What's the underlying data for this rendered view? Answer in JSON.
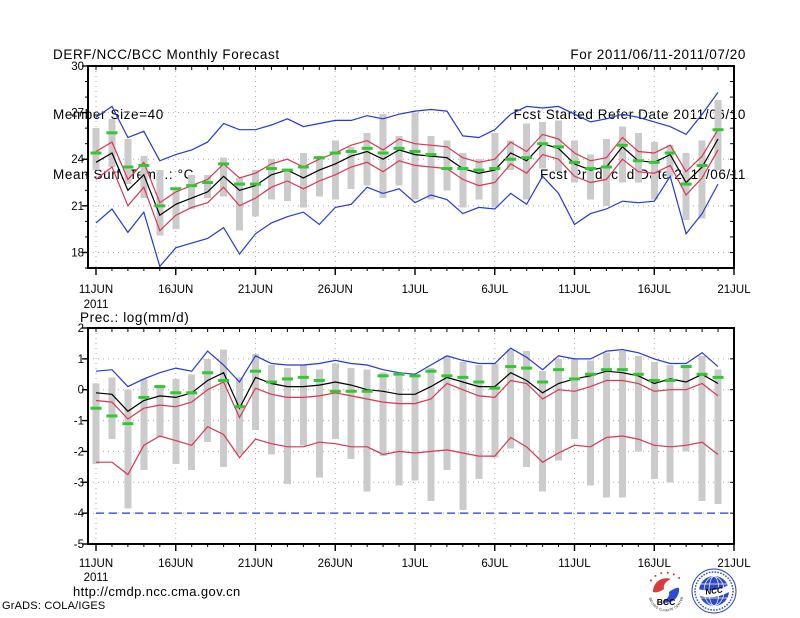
{
  "header": {
    "title": "DERF/NCC/BCC Monthly Forecast",
    "member_size": "Member Size=40",
    "for_range": "For 2011/06/11-2011/07/20",
    "fcst_started": "Fcst Started Refer Date 2011/06/10",
    "fcst_produced": "Fcst Produced Date 2011/06/11"
  },
  "footer": {
    "url": "http://cmdp.ncc.cma.gov.cn",
    "credit": "GrADS: COLA/IGES",
    "bcc_logo_text": "BCC",
    "bcc_logo_subtext": "BEIJING CLIMATE CENTER",
    "ncc_logo_text": "NCC"
  },
  "colors": {
    "mean": "#000000",
    "envelope": "#2438e0",
    "spread": "#e03350",
    "observation": "#2fc92f",
    "bars": "#cbcbcb",
    "grid": "#a9a9a9"
  },
  "chart_data": [
    {
      "type": "line",
      "title": "Mean Surf. Temp.: °C",
      "n_days": 40,
      "year_label": "2011",
      "x_tick_labels": [
        "11JUN",
        "16JUN",
        "21JUN",
        "26JUN",
        "1JUL",
        "6JUL",
        "11JUL",
        "16JUL",
        "21JUL"
      ],
      "x_tick_days": [
        1,
        6,
        11,
        16,
        21,
        26,
        31,
        36,
        41
      ],
      "ylim": [
        17,
        30
      ],
      "yticks": [
        18,
        21,
        24,
        27,
        30
      ],
      "grid": true,
      "series": [
        {
          "name": "ensemble-max",
          "color_key": "envelope",
          "values": [
            26.7,
            27.4,
            25.4,
            25.8,
            23.9,
            24.3,
            24.6,
            25.1,
            26.3,
            25.9,
            25.9,
            26.2,
            26.6,
            26.1,
            26.3,
            26.5,
            26.5,
            26.8,
            26.6,
            26.9,
            27.1,
            27.2,
            27.1,
            25.5,
            25.4,
            25.9,
            26.9,
            27.4,
            27.3,
            27.4,
            26.9,
            26.4,
            26.6,
            26.9,
            26.7,
            26.4,
            26.1,
            25.6,
            26.9,
            28.3
          ]
        },
        {
          "name": "spread-upper",
          "color_key": "spread",
          "values": [
            24.5,
            25.1,
            22.7,
            23.8,
            21.2,
            21.9,
            22.3,
            22.7,
            23.7,
            22.8,
            23.1,
            23.7,
            24.0,
            23.5,
            24.0,
            24.4,
            24.9,
            25.2,
            24.6,
            25.3,
            25.0,
            24.9,
            24.8,
            24.1,
            23.8,
            24.0,
            25.1,
            24.5,
            25.6,
            25.3,
            24.4,
            23.9,
            24.1,
            25.4,
            24.5,
            24.4,
            24.9,
            23.2,
            24.2,
            25.9
          ]
        },
        {
          "name": "spread-lower",
          "color_key": "spread",
          "values": [
            22.7,
            23.5,
            21.0,
            22.2,
            19.4,
            20.4,
            20.9,
            21.2,
            22.2,
            21.0,
            21.5,
            22.2,
            22.6,
            22.1,
            22.6,
            23.0,
            23.5,
            23.8,
            23.2,
            23.9,
            23.6,
            23.5,
            23.4,
            22.7,
            22.3,
            22.5,
            23.7,
            23.1,
            24.3,
            24.0,
            22.9,
            22.5,
            22.7,
            24.0,
            23.2,
            23.1,
            23.6,
            21.7,
            22.8,
            24.6
          ]
        },
        {
          "name": "ensemble-min",
          "color_key": "envelope",
          "values": [
            19.9,
            20.8,
            19.3,
            20.6,
            17.1,
            18.3,
            18.6,
            18.9,
            19.6,
            17.9,
            19.2,
            19.9,
            20.3,
            20.6,
            19.8,
            20.9,
            21.1,
            22.2,
            21.8,
            22.1,
            21.2,
            21.7,
            21.4,
            20.5,
            20.9,
            20.8,
            21.8,
            21.1,
            22.9,
            21.8,
            19.8,
            20.5,
            20.8,
            21.3,
            21.2,
            21.3,
            22.9,
            19.2,
            20.5,
            22.4
          ]
        },
        {
          "name": "ensemble-mean",
          "color_key": "mean",
          "values": [
            23.8,
            24.4,
            22.0,
            23.0,
            20.4,
            21.1,
            21.5,
            21.9,
            22.9,
            22.0,
            22.3,
            23.0,
            23.3,
            22.8,
            23.3,
            23.7,
            24.2,
            24.5,
            24.0,
            24.6,
            24.3,
            24.2,
            24.1,
            23.4,
            23.1,
            23.3,
            24.4,
            23.9,
            25.0,
            24.7,
            23.7,
            23.3,
            23.5,
            24.8,
            23.9,
            23.8,
            24.3,
            22.5,
            23.5,
            25.3
          ]
        }
      ],
      "markers": {
        "name": "observation",
        "color_key": "observation",
        "values": [
          24.4,
          25.7,
          23.5,
          23.6,
          21.0,
          22.1,
          22.3,
          22.5,
          23.7,
          22.4,
          22.4,
          23.4,
          23.3,
          23.5,
          24.1,
          24.4,
          24.5,
          24.7,
          24.4,
          24.7,
          24.5,
          24.3,
          23.4,
          23.4,
          23.3,
          23.4,
          24.0,
          24.1,
          25.0,
          24.8,
          23.8,
          23.4,
          23.5,
          24.9,
          23.9,
          23.8,
          24.4,
          22.4,
          23.6,
          25.9
        ]
      },
      "bars": {
        "bottom": [
          23.3,
          23.5,
          22.4,
          21.5,
          19.1,
          19.5,
          20.8,
          21.5,
          21.6,
          19.4,
          20.3,
          21.4,
          21.3,
          20.9,
          21.6,
          21.4,
          22.1,
          22.3,
          21.5,
          22.3,
          21.4,
          21.4,
          22.0,
          20.9,
          21.4,
          20.9,
          23.3,
          21.4,
          23.4,
          23.2,
          22.5,
          21.4,
          21.0,
          22.5,
          22.5,
          21.4,
          22.9,
          20.1,
          20.2,
          23.3
        ],
        "top": [
          26.0,
          26.6,
          25.3,
          24.2,
          23.3,
          22.0,
          23.0,
          23.0,
          24.1,
          22.8,
          23.3,
          24.0,
          23.4,
          24.4,
          24.2,
          25.2,
          24.8,
          25.7,
          26.9,
          25.5,
          27.0,
          25.5,
          25.2,
          24.4,
          24.0,
          25.7,
          25.2,
          26.3,
          26.4,
          26.5,
          25.2,
          24.3,
          25.3,
          26.1,
          25.7,
          25.1,
          24.9,
          24.4,
          25.2,
          27.8
        ]
      }
    },
    {
      "type": "line",
      "title": "Prec.: log(mm/d)",
      "n_days": 40,
      "year_label": "2011",
      "x_tick_labels": [
        "11JUN",
        "16JUN",
        "21JUN",
        "26JUN",
        "1JUL",
        "6JUL",
        "11JUL",
        "16JUL",
        "21JUL"
      ],
      "x_tick_days": [
        1,
        6,
        11,
        16,
        21,
        26,
        31,
        36,
        41
      ],
      "ylim": [
        -5,
        2
      ],
      "yticks": [
        -5,
        -4,
        -3,
        -2,
        -1,
        0,
        1,
        2
      ],
      "grid": true,
      "ref_line": {
        "value": -4,
        "color_key": "envelope",
        "style": "dashed"
      },
      "series": [
        {
          "name": "ensemble-max",
          "color_key": "envelope",
          "values": [
            0.6,
            0.65,
            0.1,
            0.35,
            0.55,
            0.7,
            0.6,
            1.25,
            0.8,
            0.25,
            1.1,
            0.85,
            0.8,
            0.8,
            0.85,
            0.95,
            0.85,
            0.8,
            0.65,
            0.55,
            0.5,
            0.8,
            1.1,
            0.95,
            0.85,
            0.85,
            1.35,
            1.05,
            0.65,
            1.1,
            1.0,
            1.0,
            1.25,
            1.3,
            1.2,
            1.0,
            0.85,
            0.85,
            1.2,
            0.75
          ]
        },
        {
          "name": "spread-upper",
          "color_key": "spread",
          "values": [
            -0.35,
            -0.4,
            -0.95,
            -0.6,
            -0.5,
            -0.55,
            -0.4,
            0.0,
            0.25,
            -0.9,
            0.05,
            -0.15,
            -0.25,
            -0.25,
            -0.2,
            -0.1,
            -0.2,
            -0.3,
            -0.4,
            -0.45,
            -0.45,
            -0.3,
            0.2,
            0.0,
            -0.2,
            -0.25,
            0.3,
            0.2,
            -0.3,
            0.0,
            -0.05,
            0.1,
            0.3,
            0.3,
            0.2,
            -0.05,
            0.0,
            0.0,
            0.2,
            -0.2
          ]
        },
        {
          "name": "spread-lower",
          "color_key": "spread",
          "values": [
            -2.35,
            -2.35,
            -2.75,
            -1.8,
            -1.5,
            -1.65,
            -1.8,
            -1.2,
            -1.45,
            -2.2,
            -1.6,
            -1.75,
            -1.85,
            -1.85,
            -1.7,
            -1.75,
            -1.85,
            -1.85,
            -2.1,
            -2.0,
            -2.05,
            -2.0,
            -1.95,
            -2.05,
            -2.15,
            -2.15,
            -1.55,
            -1.85,
            -2.35,
            -2.05,
            -1.8,
            -1.85,
            -1.55,
            -1.5,
            -1.6,
            -1.8,
            -1.85,
            -1.8,
            -1.7,
            -2.1
          ]
        },
        {
          "name": "ensemble-mean",
          "color_key": "mean",
          "values": [
            -0.1,
            -0.15,
            -0.7,
            -0.35,
            -0.2,
            -0.25,
            -0.1,
            0.3,
            0.55,
            -0.6,
            0.4,
            0.2,
            0.1,
            0.1,
            0.15,
            0.25,
            0.15,
            0.0,
            -0.05,
            -0.15,
            -0.15,
            0.1,
            0.4,
            0.25,
            0.1,
            0.1,
            0.55,
            0.3,
            -0.1,
            0.2,
            0.35,
            0.45,
            0.6,
            0.55,
            0.45,
            0.2,
            0.35,
            0.25,
            0.5,
            0.2
          ]
        }
      ],
      "markers": {
        "name": "observation",
        "color_key": "observation",
        "values": [
          -0.6,
          -0.85,
          -1.1,
          -0.25,
          0.1,
          -0.1,
          -0.1,
          0.55,
          0.3,
          -0.55,
          0.6,
          0.25,
          0.35,
          0.4,
          0.3,
          -0.05,
          -0.05,
          -0.05,
          0.45,
          0.5,
          0.45,
          0.6,
          0.45,
          0.4,
          0.25,
          0.05,
          0.75,
          0.7,
          0.25,
          0.65,
          0.35,
          0.5,
          0.65,
          0.65,
          0.5,
          0.3,
          0.3,
          0.75,
          0.5,
          0.4
        ]
      },
      "bars": {
        "bottom": [
          -2.4,
          -1.6,
          -3.85,
          -2.6,
          -1.55,
          -2.4,
          -2.6,
          -1.7,
          -2.5,
          -2.1,
          -1.3,
          -2.1,
          -3.05,
          -1.8,
          -2.85,
          -1.6,
          -2.25,
          -3.3,
          -2.15,
          -3.1,
          -2.95,
          -3.6,
          -2.6,
          -3.9,
          -2.9,
          -2.2,
          -1.9,
          -2.5,
          -3.3,
          -2.3,
          -1.6,
          -3.1,
          -3.5,
          -3.5,
          -2.0,
          -2.9,
          -3.0,
          -2.0,
          -3.6,
          -3.7
        ],
        "top": [
          0.2,
          0.4,
          0.0,
          0.35,
          0.15,
          0.35,
          0.5,
          1.0,
          1.3,
          0.4,
          1.15,
          0.8,
          0.7,
          0.8,
          0.65,
          0.85,
          0.7,
          0.65,
          0.55,
          0.45,
          0.5,
          0.7,
          1.1,
          0.9,
          0.8,
          0.85,
          1.3,
          1.25,
          0.6,
          1.0,
          1.0,
          0.95,
          1.2,
          1.25,
          1.1,
          0.9,
          0.8,
          0.8,
          1.1,
          0.65
        ]
      }
    }
  ]
}
